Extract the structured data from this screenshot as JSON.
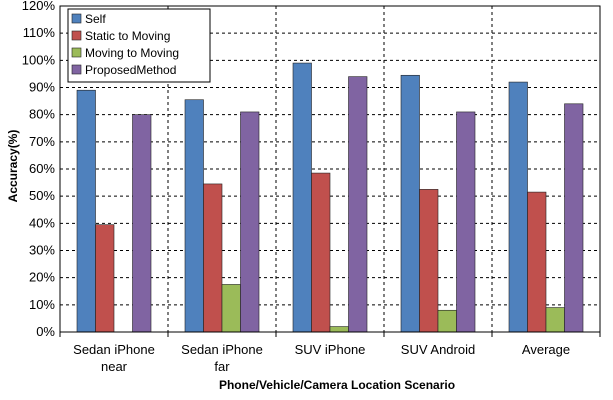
{
  "chart_data": {
    "type": "bar",
    "xlabel": "Phone/Vehicle/Camera Location Scenario",
    "ylabel": "Accuracy(%)",
    "ylim": [
      0,
      120
    ],
    "ytick_step": 10,
    "ytick_suffix": "%",
    "grid": true,
    "legend_position": "top-left",
    "categories": [
      [
        "Sedan iPhone",
        "near"
      ],
      [
        "Sedan iPhone",
        "far"
      ],
      [
        "SUV iPhone"
      ],
      [
        "SUV Android"
      ],
      [
        "Average"
      ]
    ],
    "series": [
      {
        "name": "Self",
        "color": "#4F81BD",
        "values": [
          89,
          85.5,
          99,
          94.5,
          92
        ]
      },
      {
        "name": "Static to Moving",
        "color": "#C0504D",
        "values": [
          39.5,
          54.5,
          58.5,
          52.5,
          51.5
        ]
      },
      {
        "name": "Moving to Moving",
        "color": "#9BBB59",
        "values": [
          0,
          17.5,
          2,
          8,
          9
        ]
      },
      {
        "name": "ProposedMethod",
        "color": "#8064A2",
        "values": [
          80,
          81,
          94,
          81,
          84
        ]
      }
    ]
  }
}
